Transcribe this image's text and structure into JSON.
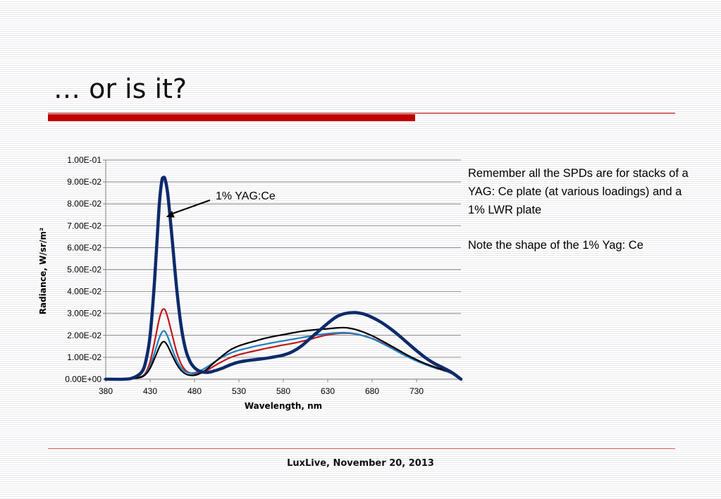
{
  "slide": {
    "title": "… or is it?",
    "notes": [
      "Remember all the SPDs are for stacks of a  YAG: Ce plate (at various loadings) and a 1% LWR plate",
      "Note the shape of the 1% Yag: Ce"
    ],
    "footer": "LuxLive, November 20, 2013"
  },
  "colors": {
    "title_rule": "#c00000",
    "series": [
      "#0d2a6b",
      "#c01818",
      "#1f7fc0",
      "#000000"
    ]
  },
  "chart_data": {
    "type": "line",
    "title": "",
    "xlabel": "Wavelength, nm",
    "ylabel": "Radiance, W/sr/m²",
    "xlim": [
      380,
      780
    ],
    "ylim": [
      0,
      0.1
    ],
    "x_ticks": [
      380,
      430,
      480,
      530,
      580,
      630,
      680,
      730
    ],
    "y_ticks": [
      {
        "value": 0,
        "label": "0.00E+00"
      },
      {
        "value": 0.01,
        "label": "1.00E-02"
      },
      {
        "value": 0.02,
        "label": "2.00E-02"
      },
      {
        "value": 0.03,
        "label": "3.00E-02"
      },
      {
        "value": 0.04,
        "label": "4.00E-02"
      },
      {
        "value": 0.05,
        "label": "5.00E-02"
      },
      {
        "value": 0.06,
        "label": "6.00E-02"
      },
      {
        "value": 0.07,
        "label": "7.00E-02"
      },
      {
        "value": 0.08,
        "label": "8.00E-02"
      },
      {
        "value": 0.09,
        "label": "9.00E-02"
      },
      {
        "value": 0.1,
        "label": "1.00E-01"
      }
    ],
    "grid": "horizontal",
    "legend": "none",
    "annotation": {
      "text": "1% YAG:Ce",
      "points_to": [
        448,
        0.074
      ]
    },
    "x": [
      380,
      400,
      410,
      420,
      425,
      430,
      435,
      440,
      443,
      445,
      447,
      450,
      455,
      460,
      465,
      470,
      475,
      480,
      485,
      490,
      495,
      500,
      510,
      520,
      530,
      540,
      550,
      560,
      570,
      580,
      590,
      600,
      610,
      620,
      630,
      640,
      650,
      660,
      670,
      680,
      690,
      700,
      710,
      720,
      730,
      740,
      750,
      760,
      770,
      780
    ],
    "series": [
      {
        "values": [
          0,
          0,
          0.0005,
          0.003,
          0.008,
          0.02,
          0.045,
          0.078,
          0.09,
          0.092,
          0.091,
          0.084,
          0.063,
          0.041,
          0.024,
          0.0135,
          0.008,
          0.0052,
          0.0038,
          0.0032,
          0.0031,
          0.0035,
          0.0048,
          0.0065,
          0.0078,
          0.0085,
          0.009,
          0.0095,
          0.0102,
          0.011,
          0.0125,
          0.015,
          0.0185,
          0.022,
          0.0255,
          0.0285,
          0.03,
          0.0304,
          0.0298,
          0.0282,
          0.026,
          0.0232,
          0.02,
          0.0165,
          0.013,
          0.0098,
          0.0072,
          0.0052,
          0.003,
          0
        ]
      },
      {
        "values": [
          0,
          0,
          0.0003,
          0.0012,
          0.003,
          0.008,
          0.017,
          0.027,
          0.031,
          0.032,
          0.0315,
          0.028,
          0.02,
          0.0122,
          0.0069,
          0.004,
          0.0028,
          0.0026,
          0.0029,
          0.0033,
          0.0042,
          0.0055,
          0.0078,
          0.0098,
          0.0112,
          0.0122,
          0.0131,
          0.014,
          0.0148,
          0.0156,
          0.0163,
          0.0172,
          0.0182,
          0.0193,
          0.0202,
          0.0208,
          0.021,
          0.0207,
          0.0198,
          0.0186,
          0.0168,
          0.0148,
          0.0126,
          0.0104,
          0.0084,
          0.0067,
          0.0052,
          0.004,
          0.0025,
          0
        ]
      },
      {
        "values": [
          0,
          0,
          0.0003,
          0.001,
          0.0025,
          0.006,
          0.012,
          0.0185,
          0.0212,
          0.022,
          0.0216,
          0.0192,
          0.0136,
          0.0085,
          0.0052,
          0.0034,
          0.0028,
          0.0029,
          0.0036,
          0.0046,
          0.0058,
          0.0072,
          0.0098,
          0.0118,
          0.0132,
          0.0142,
          0.0152,
          0.016,
          0.0168,
          0.0175,
          0.0182,
          0.0189,
          0.0196,
          0.0203,
          0.0208,
          0.0211,
          0.0212,
          0.0208,
          0.0198,
          0.0185,
          0.0166,
          0.0145,
          0.0123,
          0.0102,
          0.0083,
          0.0067,
          0.0053,
          0.0041,
          0.0026,
          0
        ]
      },
      {
        "values": [
          0,
          0,
          0.0003,
          0.0009,
          0.0022,
          0.005,
          0.0095,
          0.0143,
          0.0165,
          0.0171,
          0.0168,
          0.015,
          0.0108,
          0.0068,
          0.004,
          0.0024,
          0.0018,
          0.0018,
          0.0024,
          0.0034,
          0.0049,
          0.0068,
          0.0102,
          0.0133,
          0.0152,
          0.0165,
          0.0176,
          0.0187,
          0.0196,
          0.0203,
          0.0211,
          0.0218,
          0.0223,
          0.0227,
          0.023,
          0.0234,
          0.0235,
          0.0228,
          0.0215,
          0.0198,
          0.0177,
          0.0155,
          0.0132,
          0.0109,
          0.0089,
          0.0071,
          0.0056,
          0.0043,
          0.0028,
          0
        ]
      }
    ]
  }
}
